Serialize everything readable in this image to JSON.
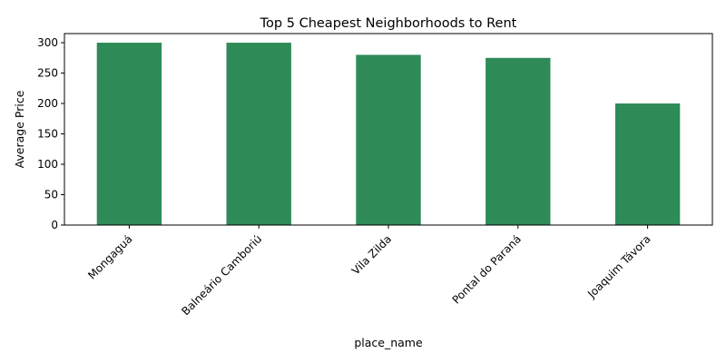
{
  "chart_data": {
    "type": "bar",
    "title": "Top 5 Cheapest Neighborhoods to Rent",
    "xlabel": "place_name",
    "ylabel": "Average Price",
    "categories": [
      "Mongaguá",
      "Balneário Camboriú",
      "Vila Zilda",
      "Pontal do Paraná",
      "Joaquim Távora"
    ],
    "values": [
      300,
      300,
      280,
      275,
      200
    ],
    "ylim": [
      0,
      315
    ],
    "yticks": [
      "0",
      "50",
      "100",
      "150",
      "200",
      "250",
      "300"
    ],
    "bar_color": "#2e8b57",
    "grid": false,
    "legend": "none"
  }
}
